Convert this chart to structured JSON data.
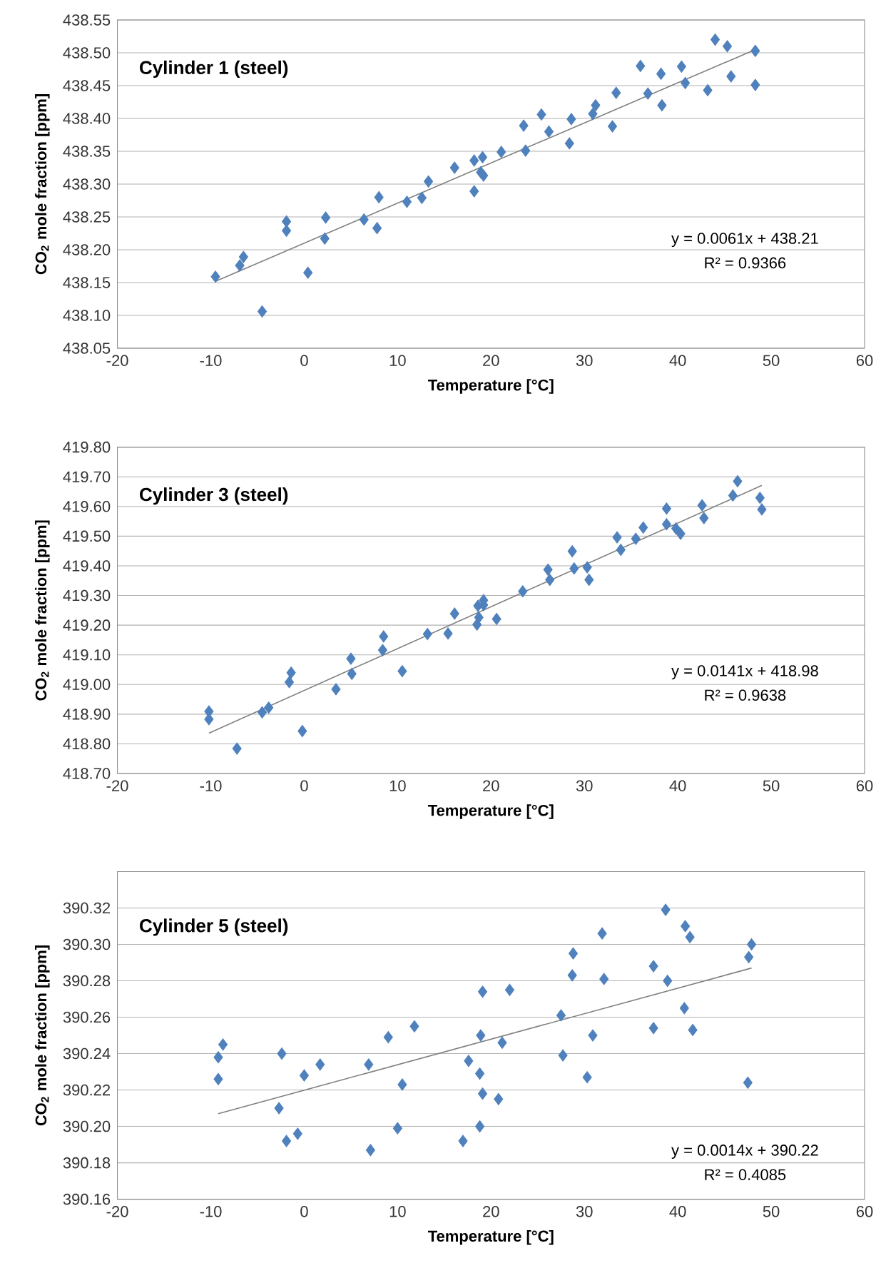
{
  "chart_data": [
    {
      "type": "scatter",
      "title": "Cylinder 1 (steel)",
      "xlabel": "Temperature [°C]",
      "ylabel": "CO$_{2}$ mole fraction [ppm]",
      "xlim": [
        -20,
        60
      ],
      "xticks": [
        -20,
        -10,
        0,
        10,
        20,
        30,
        40,
        50,
        60
      ],
      "ylim": [
        438.05,
        438.55
      ],
      "yticks": [
        {
          "value": 438.05,
          "label": "438.05"
        },
        {
          "value": 438.1,
          "label": "438.10"
        },
        {
          "value": 438.15,
          "label": "438.15"
        },
        {
          "value": 438.2,
          "label": "438.20"
        },
        {
          "value": 438.25,
          "label": "438.25"
        },
        {
          "value": 438.3,
          "label": "438.30"
        },
        {
          "value": 438.35,
          "label": "438.35"
        },
        {
          "value": 438.4,
          "label": "438.40"
        },
        {
          "value": 438.45,
          "label": "438.45"
        },
        {
          "value": 438.5,
          "label": "438.50"
        },
        {
          "value": 438.55,
          "label": "438.55"
        }
      ],
      "grid": "y",
      "annotations": [
        "y = 0.0061x + 438.21",
        "R² = 0.9366"
      ],
      "series": [
        {
          "marker": "diamond",
          "color": "#4f81bd",
          "x": [
            -9.5,
            -6.9,
            -6.5,
            -4.5,
            -1.9,
            -1.9,
            0.4,
            2.3,
            2.2,
            6.4,
            7.8,
            8.0,
            11.0,
            12.6,
            13.3,
            16.1,
            18.2,
            18.2,
            19.1,
            18.9,
            19.2,
            21.1,
            23.7,
            23.5,
            25.4,
            26.2,
            28.4,
            28.6,
            30.9,
            31.2,
            33.0,
            33.4,
            36.0,
            36.8,
            38.2,
            38.3,
            40.4,
            40.8,
            43.2,
            44.0,
            45.3,
            45.7,
            48.3,
            48.3
          ],
          "values": [
            438.159,
            438.176,
            438.189,
            438.106,
            438.243,
            438.229,
            438.165,
            438.249,
            438.217,
            438.246,
            438.233,
            438.28,
            438.273,
            438.279,
            438.304,
            438.325,
            438.289,
            438.336,
            438.341,
            438.318,
            438.313,
            438.349,
            438.351,
            438.389,
            438.406,
            438.38,
            438.362,
            438.399,
            438.407,
            438.42,
            438.388,
            438.439,
            438.48,
            438.438,
            438.468,
            438.42,
            438.479,
            438.454,
            438.443,
            438.52,
            438.51,
            438.464,
            438.503,
            438.451
          ]
        },
        {
          "type": "line",
          "marker": "none",
          "color": "#808080",
          "x": [
            -9.5,
            48.3
          ],
          "values": [
            438.152,
            438.505
          ]
        }
      ]
    },
    {
      "type": "scatter",
      "title": "Cylinder 3 (steel)",
      "xlabel": "Temperature [°C]",
      "ylabel": "CO$_{2}$ mole fraction [ppm]",
      "xlim": [
        -20,
        60
      ],
      "xticks": [
        -20,
        -10,
        0,
        10,
        20,
        30,
        40,
        50,
        60
      ],
      "ylim": [
        418.7,
        419.8
      ],
      "yticks": [
        {
          "value": 418.7,
          "label": "418.70"
        },
        {
          "value": 418.8,
          "label": "418.80"
        },
        {
          "value": 418.9,
          "label": "418.90"
        },
        {
          "value": 419.0,
          "label": "419.00"
        },
        {
          "value": 419.1,
          "label": "419.10"
        },
        {
          "value": 419.2,
          "label": "419.20"
        },
        {
          "value": 419.3,
          "label": "419.30"
        },
        {
          "value": 419.4,
          "label": "419.40"
        },
        {
          "value": 419.5,
          "label": "419.50"
        },
        {
          "value": 419.6,
          "label": "419.60"
        },
        {
          "value": 419.7,
          "label": "419.70"
        },
        {
          "value": 419.8,
          "label": "419.80"
        }
      ],
      "grid": "y",
      "annotations": [
        "y = 0.0141x + 418.98",
        "R² = 0.9638"
      ],
      "series": [
        {
          "marker": "diamond",
          "color": "#4f81bd",
          "x": [
            -10.2,
            -10.2,
            -7.2,
            -4.5,
            -3.8,
            -1.4,
            -1.6,
            -0.2,
            3.4,
            5.0,
            5.1,
            8.5,
            8.4,
            10.5,
            13.2,
            15.4,
            16.1,
            18.5,
            18.7,
            18.6,
            19.2,
            19.2,
            20.6,
            23.4,
            26.1,
            26.3,
            28.7,
            28.9,
            30.3,
            30.5,
            33.5,
            33.9,
            35.5,
            36.3,
            38.8,
            38.8,
            39.8,
            40.3,
            42.6,
            42.8,
            45.9,
            46.4,
            48.8,
            49.0
          ],
          "values": [
            418.909,
            418.883,
            418.784,
            418.906,
            418.922,
            419.04,
            419.008,
            418.843,
            418.984,
            419.087,
            419.036,
            419.162,
            419.116,
            419.045,
            419.17,
            419.172,
            419.239,
            419.202,
            419.226,
            419.265,
            419.284,
            419.268,
            419.221,
            419.314,
            419.387,
            419.353,
            419.449,
            419.391,
            419.395,
            419.353,
            419.496,
            419.454,
            419.491,
            419.529,
            419.593,
            419.54,
            419.526,
            419.508,
            419.604,
            419.561,
            419.637,
            419.685,
            419.629,
            419.59
          ]
        },
        {
          "type": "line",
          "marker": "none",
          "color": "#808080",
          "x": [
            -10.2,
            49.0
          ],
          "values": [
            418.836,
            419.671
          ]
        }
      ]
    },
    {
      "type": "scatter",
      "title": "Cylinder 5 (steel)",
      "xlabel": "Temperature [°C]",
      "ylabel": "CO$_{2}$ mole fraction [ppm]",
      "xlim": [
        -20,
        60
      ],
      "xticks": [
        -20,
        -10,
        0,
        10,
        20,
        30,
        40,
        50,
        60
      ],
      "ylim": [
        390.16,
        390.34
      ],
      "yticks": [
        {
          "value": 390.16,
          "label": "390.16"
        },
        {
          "value": 390.18,
          "label": "390.18"
        },
        {
          "value": 390.2,
          "label": "390.20"
        },
        {
          "value": 390.22,
          "label": "390.22"
        },
        {
          "value": 390.24,
          "label": "390.24"
        },
        {
          "value": 390.26,
          "label": "390.26"
        },
        {
          "value": 390.28,
          "label": "390.28"
        },
        {
          "value": 390.3,
          "label": "390.30"
        },
        {
          "value": 390.32,
          "label": "390.32"
        },
        {
          "value": 390.34,
          "label": null
        }
      ],
      "grid": "y",
      "annotations": [
        "y = 0.0014x + 390.22",
        "R² = 0.4085"
      ],
      "series": [
        {
          "marker": "diamond",
          "color": "#4f81bd",
          "x": [
            -9.2,
            -9.2,
            -8.7,
            -2.4,
            -2.7,
            -1.9,
            -0.7,
            0.0,
            1.7,
            6.9,
            7.1,
            9.0,
            10.0,
            10.5,
            11.8,
            17.0,
            17.6,
            18.9,
            18.8,
            19.1,
            18.8,
            19.1,
            20.8,
            21.2,
            22.0,
            27.5,
            27.7,
            28.7,
            28.8,
            30.3,
            30.9,
            31.9,
            32.1,
            37.4,
            37.4,
            38.7,
            38.9,
            40.7,
            40.8,
            41.3,
            41.6,
            47.5,
            47.6,
            47.9
          ],
          "values": [
            390.226,
            390.238,
            390.245,
            390.24,
            390.21,
            390.192,
            390.196,
            390.228,
            390.234,
            390.234,
            390.187,
            390.249,
            390.199,
            390.223,
            390.255,
            390.192,
            390.236,
            390.25,
            390.229,
            390.218,
            390.2,
            390.274,
            390.215,
            390.246,
            390.275,
            390.261,
            390.239,
            390.283,
            390.295,
            390.227,
            390.25,
            390.306,
            390.281,
            390.288,
            390.254,
            390.319,
            390.28,
            390.265,
            390.31,
            390.304,
            390.253,
            390.224,
            390.293,
            390.3
          ]
        },
        {
          "type": "line",
          "marker": "none",
          "color": "#808080",
          "x": [
            -9.2,
            47.9
          ],
          "values": [
            390.207,
            390.287
          ]
        }
      ]
    }
  ]
}
